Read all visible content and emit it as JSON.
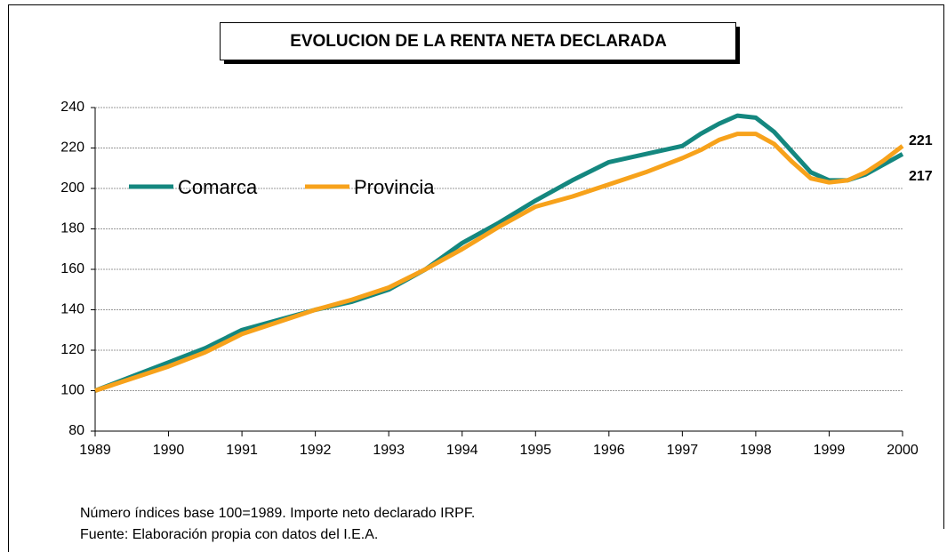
{
  "chart_data": {
    "type": "line",
    "title": "EVOLUCION DE LA RENTA NETA DECLARADA",
    "notes": [
      "Número índices base 100=1989. Importe neto declarado IRPF.",
      "Fuente: Elaboración propia con datos del I.E.A."
    ],
    "x": [
      1989,
      1989.5,
      1990,
      1990.5,
      1991,
      1991.5,
      1992,
      1992.5,
      1993,
      1993.5,
      1994,
      1994.5,
      1995,
      1995.5,
      1996,
      1996.5,
      1997,
      1997.25,
      1997.5,
      1997.75,
      1998,
      1998.25,
      1998.5,
      1998.75,
      1999,
      1999.25,
      1999.5,
      1999.75,
      2000
    ],
    "series": [
      {
        "name": "Comarca",
        "color": "#14877f",
        "values": [
          100,
          107,
          114,
          121,
          130,
          135,
          140,
          144,
          150,
          160,
          173,
          183,
          194,
          204,
          213,
          217,
          221,
          227,
          232,
          236,
          235,
          228,
          218,
          208,
          204,
          204,
          207,
          212,
          217
        ]
      },
      {
        "name": "Provincia",
        "color": "#f7a21b",
        "values": [
          100,
          106,
          112,
          119,
          128,
          134,
          140,
          145,
          151,
          160,
          170,
          181,
          191,
          196,
          202,
          208,
          215,
          219,
          224,
          227,
          227,
          222,
          213,
          205,
          203,
          204,
          208,
          214,
          221
        ]
      }
    ],
    "xlim": [
      1989,
      2000
    ],
    "xticks": [
      1989,
      1990,
      1991,
      1992,
      1993,
      1994,
      1995,
      1996,
      1997,
      1998,
      1999,
      2000
    ],
    "ylim": [
      80,
      240
    ],
    "yticks": [
      80,
      100,
      120,
      140,
      160,
      180,
      200,
      220,
      240
    ],
    "grid": true
  }
}
